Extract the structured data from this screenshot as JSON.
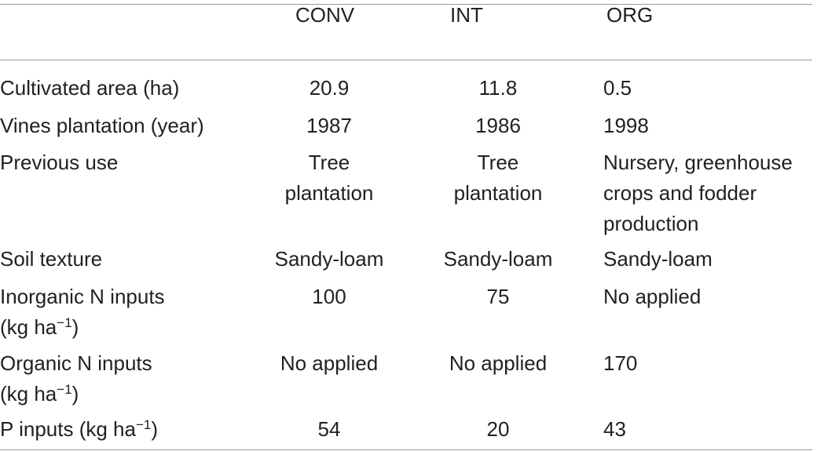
{
  "table": {
    "headers": [
      "",
      "CONV",
      "INT",
      "ORG"
    ],
    "rows": [
      {
        "label": [
          "Cultivated area (ha)"
        ],
        "conv": [
          "20.9"
        ],
        "int": [
          "11.8"
        ],
        "org": [
          "0.5"
        ]
      },
      {
        "label": [
          "Vines plantation (year)"
        ],
        "conv": [
          "1987"
        ],
        "int": [
          "1986"
        ],
        "org": [
          "1998"
        ]
      },
      {
        "label": [
          "Previous use"
        ],
        "conv": [
          "Tree",
          "plantation"
        ],
        "int": [
          "Tree",
          "plantation"
        ],
        "org": [
          "Nursery, greenhouse",
          "crops and fodder",
          "production"
        ]
      },
      {
        "label": [
          "Soil texture"
        ],
        "conv": [
          "Sandy-loam"
        ],
        "int": [
          "Sandy-loam"
        ],
        "org": [
          "Sandy-loam"
        ]
      },
      {
        "label": [
          "Inorganic N inputs",
          "(kg ha",
          "−1",
          ")"
        ],
        "conv": [
          "100"
        ],
        "int": [
          "75"
        ],
        "org": [
          "No applied"
        ]
      },
      {
        "label": [
          "Organic N inputs",
          "(kg ha",
          "−1",
          ")"
        ],
        "conv": [
          "No applied"
        ],
        "int": [
          "No applied"
        ],
        "org": [
          "170"
        ]
      },
      {
        "label": [
          "P inputs (kg ha",
          "−1",
          ")"
        ],
        "conv": [
          "54"
        ],
        "int": [
          "20"
        ],
        "org": [
          "43"
        ]
      }
    ]
  }
}
